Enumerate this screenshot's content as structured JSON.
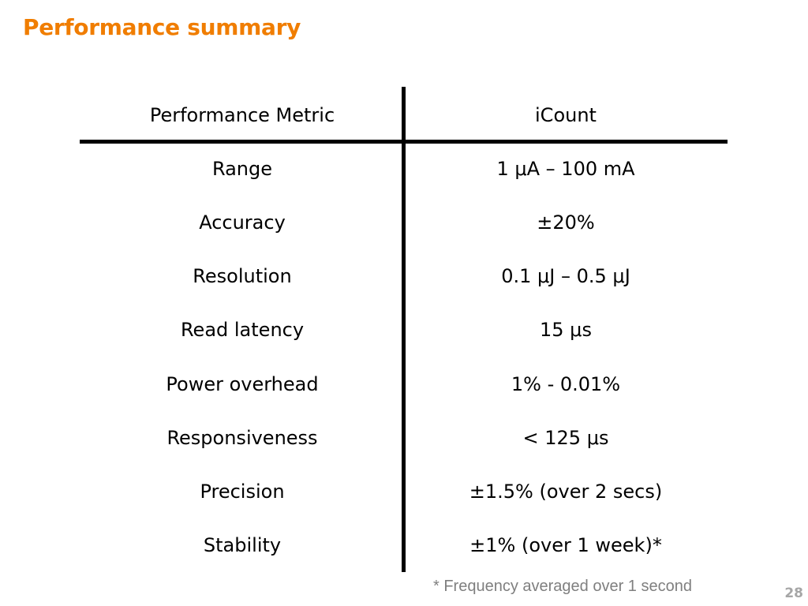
{
  "title": "Performance summary",
  "colors": {
    "title": "#f07d00",
    "footnote": "#7f7f7f",
    "page_number": "#a6a6a6",
    "rule": "#000000"
  },
  "table": {
    "header": {
      "metric": "Performance Metric",
      "value": "iCount"
    },
    "rows": [
      {
        "metric": "Range",
        "value": "1 μA – 100 mA"
      },
      {
        "metric": "Accuracy",
        "value": "±20%"
      },
      {
        "metric": "Resolution",
        "value": "0.1 μJ – 0.5 μJ"
      },
      {
        "metric": "Read latency",
        "value": "15 μs"
      },
      {
        "metric": "Power overhead",
        "value": "1% - 0.01%"
      },
      {
        "metric": "Responsiveness",
        "value": "< 125 μs"
      },
      {
        "metric": "Precision",
        "value": "±1.5% (over 2 secs)"
      },
      {
        "metric": "Stability",
        "value": "±1% (over 1 week)*"
      }
    ]
  },
  "footnote": "* Frequency averaged over 1 second",
  "page_number": "28"
}
